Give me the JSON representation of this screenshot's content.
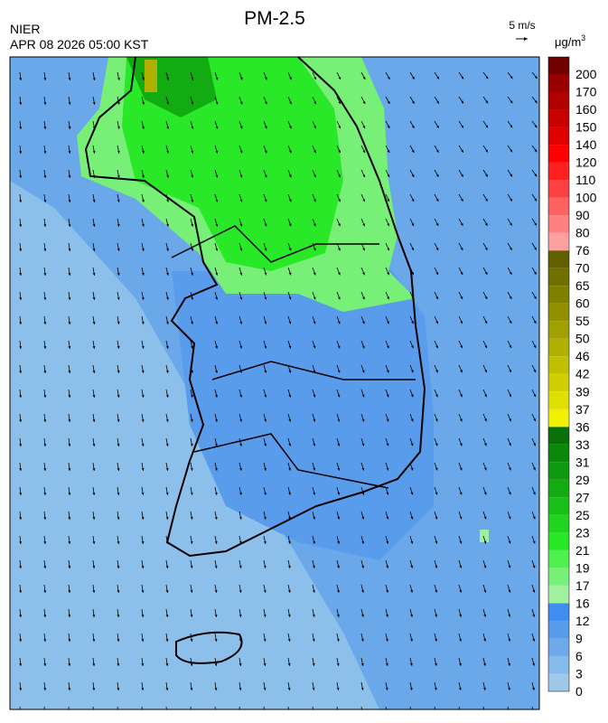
{
  "header": {
    "agency": "NIER",
    "datetime": "APR 08 2026 05:00 KST",
    "title": "PM-2.5",
    "wind_scale": "5 m/s"
  },
  "colorbar": {
    "unit": {
      "base": "μg/m",
      "superscript": "3"
    },
    "levels": [
      {
        "value": 0,
        "color": "#a0c8e8"
      },
      {
        "value": 3,
        "color": "#86baea"
      },
      {
        "value": 6,
        "color": "#6eaaea"
      },
      {
        "value": 9,
        "color": "#5a9cec"
      },
      {
        "value": 12,
        "color": "#3d8ef0"
      },
      {
        "value": 16,
        "color": "#a0f0a0"
      },
      {
        "value": 17,
        "color": "#78f078"
      },
      {
        "value": 19,
        "color": "#50f050"
      },
      {
        "value": 21,
        "color": "#28e828"
      },
      {
        "value": 23,
        "color": "#20d420"
      },
      {
        "value": 25,
        "color": "#18c018"
      },
      {
        "value": 27,
        "color": "#12ac12"
      },
      {
        "value": 29,
        "color": "#0e9a0e"
      },
      {
        "value": 31,
        "color": "#0a880a"
      },
      {
        "value": 33,
        "color": "#087008"
      },
      {
        "value": 36,
        "color": "#f0f000"
      },
      {
        "value": 37,
        "color": "#e0e000"
      },
      {
        "value": 39,
        "color": "#d0d000"
      },
      {
        "value": 42,
        "color": "#c0c000"
      },
      {
        "value": 46,
        "color": "#b0b000"
      },
      {
        "value": 50,
        "color": "#a0a000"
      },
      {
        "value": 55,
        "color": "#909000"
      },
      {
        "value": 60,
        "color": "#808000"
      },
      {
        "value": 65,
        "color": "#707000"
      },
      {
        "value": 70,
        "color": "#606000"
      },
      {
        "value": 76,
        "color": "#ffa0a0"
      },
      {
        "value": 80,
        "color": "#ff8080"
      },
      {
        "value": 90,
        "color": "#ff6060"
      },
      {
        "value": 100,
        "color": "#ff4040"
      },
      {
        "value": 110,
        "color": "#ff2020"
      },
      {
        "value": 120,
        "color": "#ff0000"
      },
      {
        "value": 140,
        "color": "#e00000"
      },
      {
        "value": 150,
        "color": "#c80000"
      },
      {
        "value": 160,
        "color": "#b00000"
      },
      {
        "value": 170,
        "color": "#980000"
      },
      {
        "value": 200,
        "color": "#700000"
      }
    ]
  }
}
